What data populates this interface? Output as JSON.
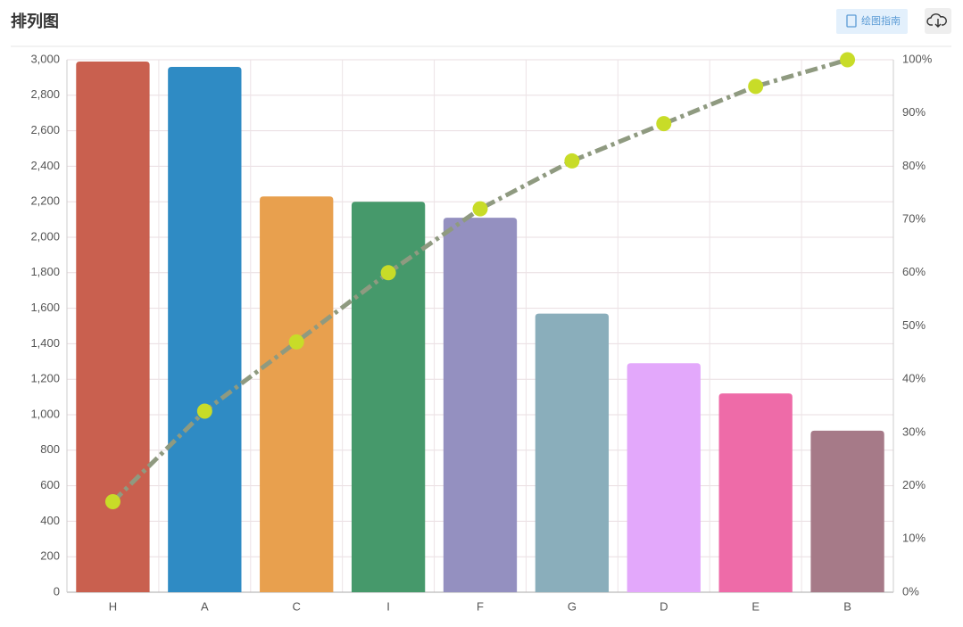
{
  "header": {
    "title": "排列图",
    "guide_button": "绘图指南"
  },
  "chart_data": {
    "type": "pareto",
    "categories": [
      "H",
      "A",
      "C",
      "I",
      "F",
      "G",
      "D",
      "E",
      "B"
    ],
    "series": [
      {
        "type": "bar",
        "colors": [
          "#c9604f",
          "#2f8bc4",
          "#e8a04e",
          "#46996b",
          "#9490c0",
          "#8aaebb",
          "#e3a8fb",
          "#ee6ba8",
          "#a67a88"
        ],
        "values": [
          2990,
          2960,
          2230,
          2200,
          2110,
          1570,
          1290,
          1120,
          910
        ]
      },
      {
        "type": "line",
        "axis": "y2",
        "color": "#8f9a80",
        "marker_color": "#c8dc28",
        "values": [
          17,
          34,
          47,
          60,
          72,
          81,
          88,
          95,
          100
        ]
      }
    ],
    "ylim": [
      0,
      3000
    ],
    "yticks": [
      0,
      200,
      400,
      600,
      800,
      {
        "value": 1000,
        "label": "1,000"
      },
      {
        "value": 1200,
        "label": "1,200"
      },
      {
        "value": 1400,
        "label": "1,400"
      },
      {
        "value": 1600,
        "label": "1,600"
      },
      {
        "value": 1800,
        "label": "1,800"
      },
      {
        "value": 2000,
        "label": "2,000"
      },
      {
        "value": 2200,
        "label": "2,200"
      },
      {
        "value": 2400,
        "label": "2,400"
      },
      {
        "value": 2600,
        "label": "2,600"
      },
      {
        "value": 2800,
        "label": "2,800"
      },
      {
        "value": 3000,
        "label": "3,000"
      }
    ],
    "y2lim": [
      0,
      100
    ],
    "y2ticks": [
      {
        "value": 0,
        "label": "0%"
      },
      {
        "value": 10,
        "label": "10%"
      },
      {
        "value": 20,
        "label": "20%"
      },
      {
        "value": 30,
        "label": "30%"
      },
      {
        "value": 40,
        "label": "40%"
      },
      {
        "value": 50,
        "label": "50%"
      },
      {
        "value": 60,
        "label": "60%"
      },
      {
        "value": 70,
        "label": "70%"
      },
      {
        "value": 80,
        "label": "80%"
      },
      {
        "value": 90,
        "label": "90%"
      },
      {
        "value": 100,
        "label": "100%"
      }
    ],
    "grid": true
  }
}
